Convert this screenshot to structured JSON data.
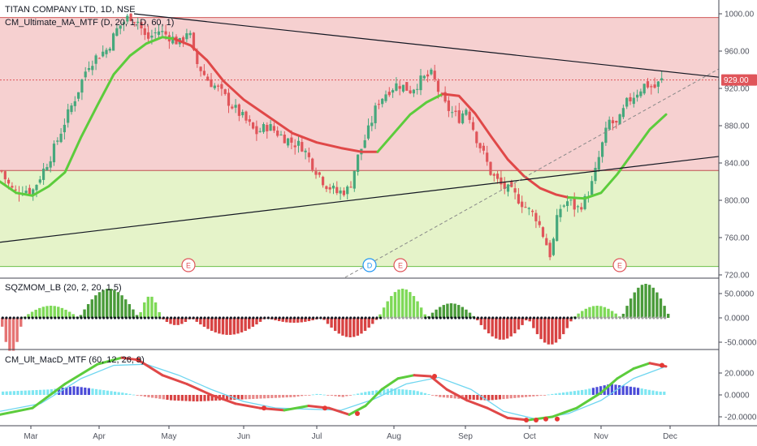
{
  "header": {
    "title": "TITAN COMPANY LTD, 1D, NSE",
    "indicator": "CM_Ultimate_MA_MTF (D, 20, 1, D, 60, 1)"
  },
  "colors": {
    "upper_zone": "#f6d0d0",
    "lower_zone": "#e5f3c9",
    "candle_up": "#46a87c",
    "candle_down": "#e0555a",
    "ma_up": "#5ccc3c",
    "ma_down": "#e04848",
    "hist_up": "#4caf50",
    "hist_down": "#d84343",
    "price_line": "#e0555a"
  },
  "chart_data": [
    {
      "type": "line",
      "title": "TITAN COMPANY LTD, 1D, NSE",
      "x": [
        "Mar",
        "Apr",
        "May",
        "Jun",
        "Jul",
        "Aug",
        "Sep",
        "Oct",
        "Nov",
        "Dec"
      ],
      "ylim": [
        720,
        1000
      ],
      "yticks": [
        "1000.00",
        "960.00",
        "920.00",
        "880.00",
        "840.00",
        "800.00",
        "760.00",
        "720.00"
      ],
      "current_price": "929.00",
      "price_path": [
        [
          0,
          835
        ],
        [
          8,
          820
        ],
        [
          18,
          808
        ],
        [
          28,
          812
        ],
        [
          40,
          810
        ],
        [
          52,
          830
        ],
        [
          65,
          852
        ],
        [
          80,
          885
        ],
        [
          95,
          915
        ],
        [
          108,
          945
        ],
        [
          120,
          955
        ],
        [
          132,
          962
        ],
        [
          145,
          985
        ],
        [
          160,
          998
        ],
        [
          170,
          992
        ],
        [
          180,
          972
        ],
        [
          195,
          982
        ],
        [
          210,
          975
        ],
        [
          222,
          968
        ],
        [
          232,
          985
        ],
        [
          240,
          950
        ],
        [
          255,
          930
        ],
        [
          270,
          918
        ],
        [
          285,
          902
        ],
        [
          300,
          888
        ],
        [
          315,
          872
        ],
        [
          330,
          880
        ],
        [
          345,
          870
        ],
        [
          360,
          862
        ],
        [
          372,
          858
        ],
        [
          385,
          838
        ],
        [
          400,
          818
        ],
        [
          415,
          808
        ],
        [
          430,
          812
        ],
        [
          440,
          845
        ],
        [
          455,
          878
        ],
        [
          465,
          905
        ],
        [
          478,
          918
        ],
        [
          490,
          925
        ],
        [
          505,
          918
        ],
        [
          520,
          930
        ],
        [
          532,
          935
        ],
        [
          545,
          905
        ],
        [
          555,
          895
        ],
        [
          565,
          888
        ],
        [
          575,
          900
        ],
        [
          585,
          870
        ],
        [
          595,
          850
        ],
        [
          605,
          828
        ],
        [
          618,
          815
        ],
        [
          628,
          810
        ],
        [
          640,
          800
        ],
        [
          650,
          790
        ],
        [
          660,
          782
        ],
        [
          670,
          760
        ],
        [
          678,
          740
        ],
        [
          688,
          790
        ],
        [
          700,
          800
        ],
        [
          710,
          790
        ],
        [
          720,
          800
        ],
        [
          730,
          820
        ],
        [
          740,
          855
        ],
        [
          750,
          885
        ],
        [
          760,
          880
        ],
        [
          772,
          905
        ],
        [
          783,
          915
        ],
        [
          795,
          925
        ],
        [
          805,
          920
        ],
        [
          815,
          929
        ]
      ],
      "ma20_up": [
        [
          0,
          820
        ],
        [
          20,
          808
        ],
        [
          40,
          805
        ],
        [
          60,
          815
        ],
        [
          80,
          830
        ],
        [
          100,
          868
        ],
        [
          120,
          902
        ],
        [
          140,
          935
        ],
        [
          160,
          955
        ],
        [
          180,
          968
        ],
        [
          200,
          975
        ],
        [
          215,
          973
        ]
      ],
      "ma20_down": [
        [
          215,
          973
        ],
        [
          235,
          966
        ],
        [
          255,
          950
        ],
        [
          275,
          928
        ],
        [
          300,
          908
        ],
        [
          330,
          890
        ],
        [
          360,
          872
        ],
        [
          390,
          862
        ],
        [
          420,
          856
        ],
        [
          445,
          852
        ],
        [
          465,
          852
        ]
      ],
      "ma20_up2": [
        [
          465,
          852
        ],
        [
          485,
          872
        ],
        [
          505,
          892
        ],
        [
          525,
          905
        ],
        [
          545,
          914
        ]
      ],
      "ma20_down2": [
        [
          545,
          914
        ],
        [
          565,
          912
        ],
        [
          585,
          893
        ],
        [
          605,
          868
        ],
        [
          625,
          844
        ],
        [
          645,
          826
        ],
        [
          665,
          813
        ],
        [
          685,
          806
        ],
        [
          700,
          803
        ]
      ],
      "ma20_up3": [
        [
          700,
          803
        ],
        [
          720,
          802
        ],
        [
          740,
          808
        ],
        [
          760,
          828
        ],
        [
          780,
          852
        ],
        [
          800,
          876
        ],
        [
          820,
          892
        ]
      ],
      "trendlines": [
        {
          "from": [
            165,
            1000
          ],
          "to": [
            885,
            932
          ]
        },
        {
          "from": [
            0,
            755
          ],
          "to": [
            885,
            847
          ]
        }
      ],
      "zones": {
        "upper_top": 996,
        "upper_bottom": 832,
        "lower_bottom": 729
      },
      "events": [
        {
          "x": 232,
          "label": "E",
          "color": "#e0555a"
        },
        {
          "x": 455,
          "label": "D",
          "color": "#2196f3"
        },
        {
          "x": 493,
          "label": "E",
          "color": "#e0555a"
        },
        {
          "x": 763,
          "label": "E",
          "color": "#e0555a"
        }
      ]
    },
    {
      "type": "bar",
      "title": "SQZMOM_LB (20, 2, 20, 1.5)",
      "ylim": [
        -60,
        80
      ],
      "yticks": [
        "50.0000",
        "0.0000",
        "-50.0000"
      ],
      "segments": [
        {
          "start": 0,
          "end": 5,
          "peak": -70,
          "kind": "down_light"
        },
        {
          "start": 6,
          "end": 20,
          "peak": 25,
          "kind": "up"
        },
        {
          "start": 21,
          "end": 36,
          "peak": 60,
          "kind": "up_dark"
        },
        {
          "start": 37,
          "end": 42,
          "peak": 45,
          "kind": "up"
        },
        {
          "start": 43,
          "end": 50,
          "peak": -15,
          "kind": "down"
        },
        {
          "start": 51,
          "end": 70,
          "peak": -35,
          "kind": "down"
        },
        {
          "start": 71,
          "end": 85,
          "peak": -10,
          "kind": "down"
        },
        {
          "start": 86,
          "end": 100,
          "peak": -40,
          "kind": "down"
        },
        {
          "start": 101,
          "end": 113,
          "peak": 60,
          "kind": "up"
        },
        {
          "start": 114,
          "end": 126,
          "peak": 30,
          "kind": "up_dark"
        },
        {
          "start": 127,
          "end": 140,
          "peak": -45,
          "kind": "down"
        },
        {
          "start": 141,
          "end": 152,
          "peak": -55,
          "kind": "down"
        },
        {
          "start": 153,
          "end": 165,
          "peak": 25,
          "kind": "up"
        },
        {
          "start": 166,
          "end": 178,
          "peak": 70,
          "kind": "up_dark"
        }
      ]
    },
    {
      "type": "line",
      "title": "CM_Ult_MacD_MTF (60, 12, 26, 9)",
      "ylim": [
        -25,
        35
      ],
      "yticks": [
        "20.0000",
        "0.0000",
        "-20.0000"
      ],
      "macd": [
        [
          0,
          -18
        ],
        [
          40,
          -12
        ],
        [
          80,
          10
        ],
        [
          120,
          28
        ],
        [
          150,
          34
        ],
        [
          170,
          32
        ],
        [
          200,
          18
        ],
        [
          230,
          10
        ],
        [
          260,
          0
        ],
        [
          290,
          -8
        ],
        [
          320,
          -12
        ],
        [
          350,
          -14
        ],
        [
          380,
          -10
        ],
        [
          405,
          -12
        ],
        [
          430,
          -18
        ],
        [
          450,
          -10
        ],
        [
          470,
          5
        ],
        [
          490,
          15
        ],
        [
          510,
          18
        ],
        [
          530,
          17
        ],
        [
          550,
          5
        ],
        [
          575,
          -5
        ],
        [
          600,
          -12
        ],
        [
          625,
          -21
        ],
        [
          650,
          -23
        ],
        [
          680,
          -20
        ],
        [
          710,
          -12
        ],
        [
          740,
          2
        ],
        [
          760,
          15
        ],
        [
          780,
          24
        ],
        [
          800,
          29
        ],
        [
          820,
          26
        ]
      ],
      "signal": [
        [
          0,
          -15
        ],
        [
          50,
          -8
        ],
        [
          100,
          15
        ],
        [
          140,
          27
        ],
        [
          180,
          28
        ],
        [
          220,
          18
        ],
        [
          260,
          5
        ],
        [
          300,
          -6
        ],
        [
          340,
          -12
        ],
        [
          380,
          -13
        ],
        [
          420,
          -14
        ],
        [
          460,
          -4
        ],
        [
          500,
          10
        ],
        [
          540,
          16
        ],
        [
          580,
          5
        ],
        [
          620,
          -15
        ],
        [
          660,
          -22
        ],
        [
          700,
          -17
        ],
        [
          740,
          -5
        ],
        [
          780,
          15
        ],
        [
          820,
          26
        ]
      ],
      "hist": [
        [
          0,
          3
        ],
        [
          30,
          4
        ],
        [
          60,
          5
        ],
        [
          90,
          8
        ],
        [
          120,
          5
        ],
        [
          150,
          2
        ],
        [
          180,
          -2
        ],
        [
          210,
          -5
        ],
        [
          240,
          -6
        ],
        [
          270,
          -5
        ],
        [
          300,
          -4
        ],
        [
          330,
          -3
        ],
        [
          360,
          -2
        ],
        [
          390,
          1
        ],
        [
          420,
          -2
        ],
        [
          450,
          3
        ],
        [
          480,
          6
        ],
        [
          510,
          4
        ],
        [
          540,
          -2
        ],
        [
          570,
          -4
        ],
        [
          600,
          -5
        ],
        [
          630,
          -3
        ],
        [
          660,
          -1
        ],
        [
          690,
          2
        ],
        [
          720,
          5
        ],
        [
          750,
          10
        ],
        [
          780,
          7
        ],
        [
          810,
          3
        ]
      ]
    }
  ],
  "xaxis": {
    "labels": [
      {
        "label": "Mar",
        "x": 38
      },
      {
        "label": "Apr",
        "x": 122
      },
      {
        "label": "May",
        "x": 208
      },
      {
        "label": "Jun",
        "x": 300
      },
      {
        "label": "Jul",
        "x": 390
      },
      {
        "label": "Aug",
        "x": 485
      },
      {
        "label": "Sep",
        "x": 573
      },
      {
        "label": "Oct",
        "x": 652
      },
      {
        "label": "Nov",
        "x": 740
      },
      {
        "label": "Dec",
        "x": 825
      }
    ]
  },
  "panes": [
    {
      "title": "SQZMOM_LB (20, 2, 20, 1.5)"
    },
    {
      "title": "CM_Ult_MacD_MTF (60, 12, 26, 9)"
    }
  ]
}
